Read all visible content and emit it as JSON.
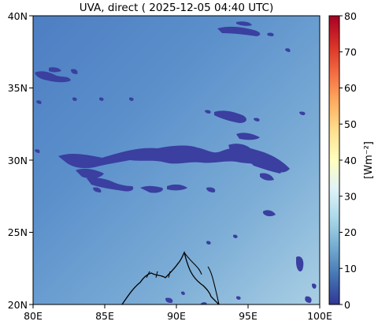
{
  "title": "UVA, direct ( 2025-12-05 04:40 UTC)",
  "map": {
    "lon_ticks": [
      "80E",
      "85E",
      "90E",
      "95E",
      "100E"
    ],
    "lat_ticks": [
      "40N",
      "35N",
      "30N",
      "25N",
      "20N"
    ],
    "lon_range": [
      80,
      100
    ],
    "lat_range": [
      20,
      40
    ],
    "background_gradient": [
      "#4f7fc4",
      "#5f95cc",
      "#7fb0d8",
      "#a6cde3"
    ],
    "patch_color": "#3a3fa0",
    "coastline_color": "#000000"
  },
  "colorbar": {
    "label": "[Wm⁻²]",
    "ticks": [
      "80",
      "70",
      "60",
      "50",
      "40",
      "30",
      "20",
      "10",
      "0"
    ],
    "range": [
      0,
      80
    ],
    "colors": [
      "#313695",
      "#4575b4",
      "#74add1",
      "#abd9e9",
      "#e0f3f8",
      "#ffffbf",
      "#fee090",
      "#fdae61",
      "#f46d43",
      "#d73027",
      "#a50026"
    ]
  }
}
